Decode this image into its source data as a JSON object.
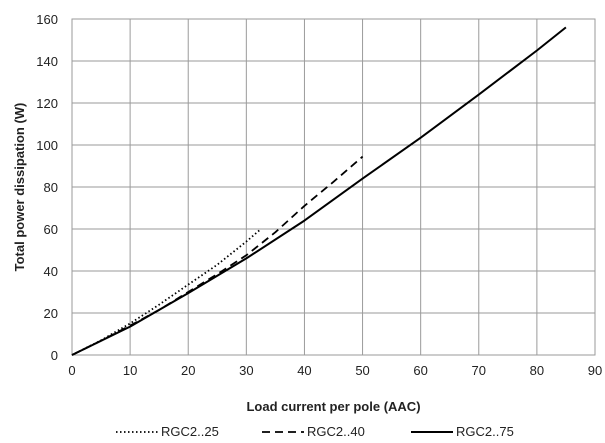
{
  "chart_data": {
    "type": "line",
    "title": "",
    "xlabel": "Load current per pole (AAC)",
    "ylabel": "Total power dissipation (W)",
    "xlim": [
      0,
      90
    ],
    "ylim": [
      0,
      160
    ],
    "x_ticks": [
      0,
      10,
      20,
      30,
      40,
      50,
      60,
      70,
      80,
      90
    ],
    "y_ticks": [
      0,
      20,
      40,
      60,
      80,
      100,
      120,
      140,
      160
    ],
    "grid": true,
    "legend_position": "bottom",
    "series": [
      {
        "name": "RGC2..25",
        "line_style": "dotted",
        "color": "#000000",
        "x": [
          0,
          5,
          10,
          15,
          20,
          25,
          30,
          32.5
        ],
        "y": [
          0,
          7,
          15,
          24,
          33.5,
          43,
          54,
          60
        ]
      },
      {
        "name": "RGC2..40",
        "line_style": "dashed",
        "color": "#000000",
        "x": [
          0,
          5,
          10,
          15,
          20,
          25,
          30,
          35,
          40,
          45,
          50
        ],
        "y": [
          0,
          6.8,
          14,
          21.5,
          30,
          38.5,
          47.5,
          58.5,
          71,
          82.5,
          94.5
        ]
      },
      {
        "name": "RGC2..75",
        "line_style": "solid",
        "color": "#000000",
        "x": [
          0,
          10,
          20,
          30,
          40,
          50,
          60,
          70,
          80,
          85
        ],
        "y": [
          0,
          13.5,
          29.5,
          46,
          64,
          84,
          103.5,
          124,
          145,
          156
        ]
      }
    ]
  }
}
